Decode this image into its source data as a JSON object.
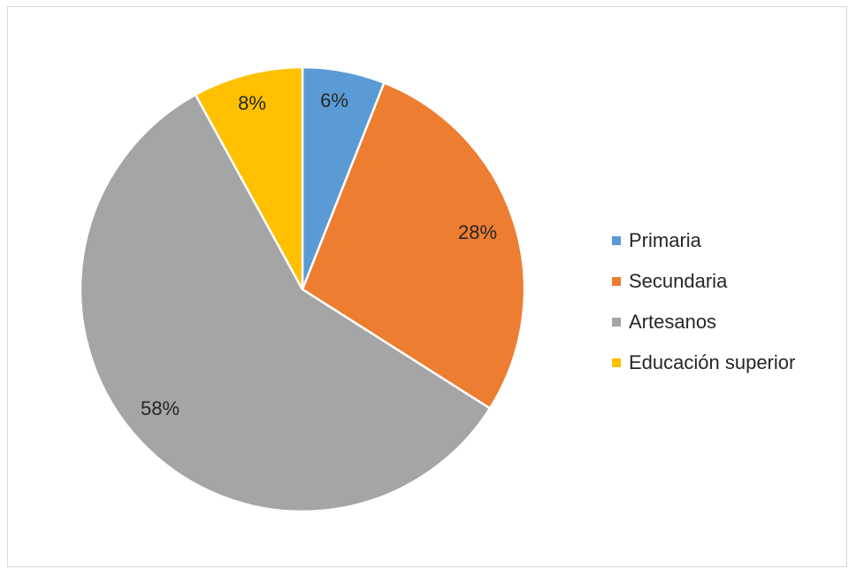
{
  "chart_data": {
    "type": "pie",
    "title": "",
    "categories": [
      "Primaria",
      "Secundaria",
      "Artesanos",
      "Educación superior"
    ],
    "values": [
      6,
      28,
      58,
      8
    ],
    "data_labels": [
      "6%",
      "28%",
      "58%",
      "8%"
    ],
    "colors": [
      "#5b9bd5",
      "#ed7d31",
      "#a5a5a5",
      "#ffc000"
    ],
    "legend_position": "right",
    "start_angle": "12 o'clock",
    "direction": "clockwise"
  }
}
